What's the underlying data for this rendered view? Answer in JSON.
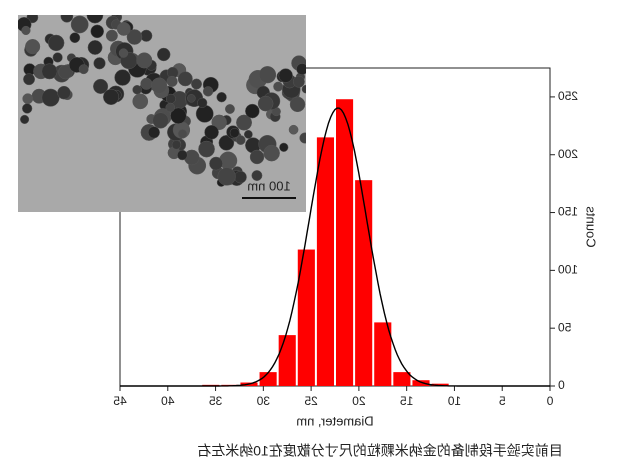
{
  "chart_data": {
    "type": "histogram",
    "x_label": "Diameter, nm",
    "y_label": "Counts",
    "bins": [
      10.5,
      12.5,
      14.5,
      16.5,
      18.5,
      20.5,
      22.5,
      24.5,
      26.5,
      28.5,
      30.5,
      32.5,
      34.5,
      36.5
    ],
    "values": [
      2,
      5,
      12,
      55,
      178,
      248,
      215,
      118,
      44,
      12,
      3,
      1,
      1
    ],
    "color": "#ff0000",
    "fit_color": "#000000",
    "xlim": [
      0,
      45
    ],
    "xticks": [
      0,
      5,
      10,
      15,
      20,
      25,
      30,
      35,
      40,
      45
    ],
    "ylim": [
      0,
      275
    ],
    "yticks": [
      0,
      50,
      100,
      150,
      200,
      250
    ],
    "mirrored": true
  },
  "inset": {
    "scale_bar_label": "100 nm"
  },
  "caption": "目前实验手段制备的金纳米颗粒的尺寸分散度在10纳米左右"
}
